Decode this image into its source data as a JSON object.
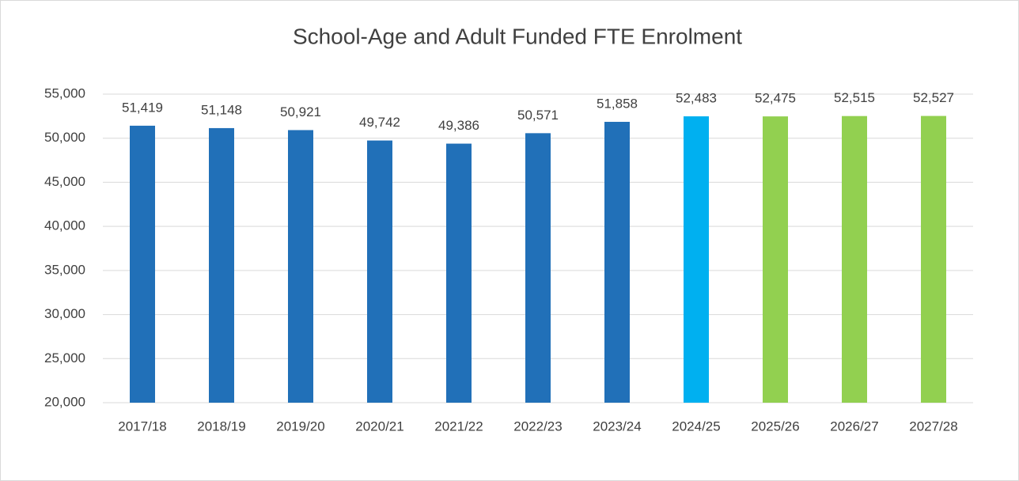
{
  "chart_data": {
    "type": "bar",
    "title": "School-Age and Adult Funded FTE Enrolment",
    "categories": [
      "2017/18",
      "2018/19",
      "2019/20",
      "2020/21",
      "2021/22",
      "2022/23",
      "2023/24",
      "2024/25",
      "2025/26",
      "2026/27",
      "2027/28"
    ],
    "values": [
      51419,
      51148,
      50921,
      49742,
      49386,
      50571,
      51858,
      52483,
      52475,
      52515,
      52527
    ],
    "value_labels": [
      "51,419",
      "51,148",
      "50,921",
      "49,742",
      "49,386",
      "50,571",
      "51,858",
      "52,483",
      "52,475",
      "52,515",
      "52,527"
    ],
    "colors": [
      "#2170b8",
      "#2170b8",
      "#2170b8",
      "#2170b8",
      "#2170b8",
      "#2170b8",
      "#2170b8",
      "#00b0f0",
      "#92d050",
      "#92d050",
      "#92d050"
    ],
    "ylim": [
      20000,
      55000
    ],
    "yticks": [
      {
        "value": 20000,
        "label": "20,000"
      },
      {
        "value": 25000,
        "label": "25,000"
      },
      {
        "value": 30000,
        "label": "30,000"
      },
      {
        "value": 35000,
        "label": "35,000"
      },
      {
        "value": 40000,
        "label": "40,000"
      },
      {
        "value": 45000,
        "label": "45,000"
      },
      {
        "value": 50000,
        "label": "50,000"
      },
      {
        "value": 55000,
        "label": "55,000"
      }
    ],
    "grid": true
  }
}
